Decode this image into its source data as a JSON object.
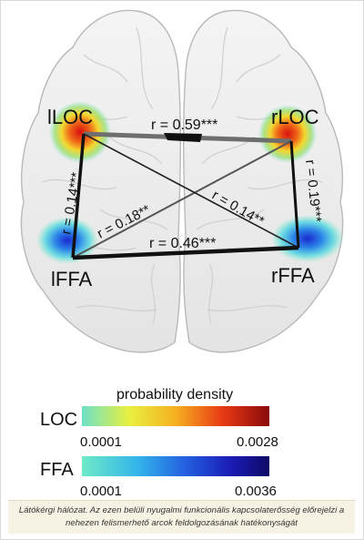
{
  "figure": {
    "regions": {
      "lLOC": "lLOC",
      "rLOC": "rLOC",
      "lFFA": "lFFA",
      "rFFA": "rFFA"
    },
    "connections": {
      "lLOC_rLOC": {
        "label": "r = 0.59***",
        "r": 0.59
      },
      "lLOC_lFFA": {
        "label": "r = 0.14***",
        "r": 0.14
      },
      "lFFA_rLOC": {
        "label": "r = 0.18**",
        "r": 0.18
      },
      "lFFA_rFFA": {
        "label": "r = 0.46***",
        "r": 0.46
      },
      "rLOC_rFFA": {
        "label": "r = 0.19***",
        "r": 0.19
      },
      "lLOC_rFFA": {
        "label": "r = 0.14**",
        "r": 0.14
      }
    }
  },
  "legend": {
    "title": "probability density",
    "loc": {
      "name": "LOC",
      "min": "0.0001",
      "max": "0.0028",
      "colors": [
        "#6de0c8",
        "#e8f040",
        "#f6b020",
        "#e83a14",
        "#8a0a0a"
      ]
    },
    "ffa": {
      "name": "FFA",
      "min": "0.0001",
      "max": "0.0036",
      "colors": [
        "#6eeac8",
        "#33b4ea",
        "#2460e0",
        "#1a1ab4",
        "#0e0a66"
      ]
    }
  },
  "caption": {
    "line1": "Látókérgi hálózat. Az ezen belüli nyugalmi funkcionális kapcsolaterősség előrejelzi a",
    "line2": "nehezen felismerhető arcok feldolgozásának hatékonyságát"
  }
}
